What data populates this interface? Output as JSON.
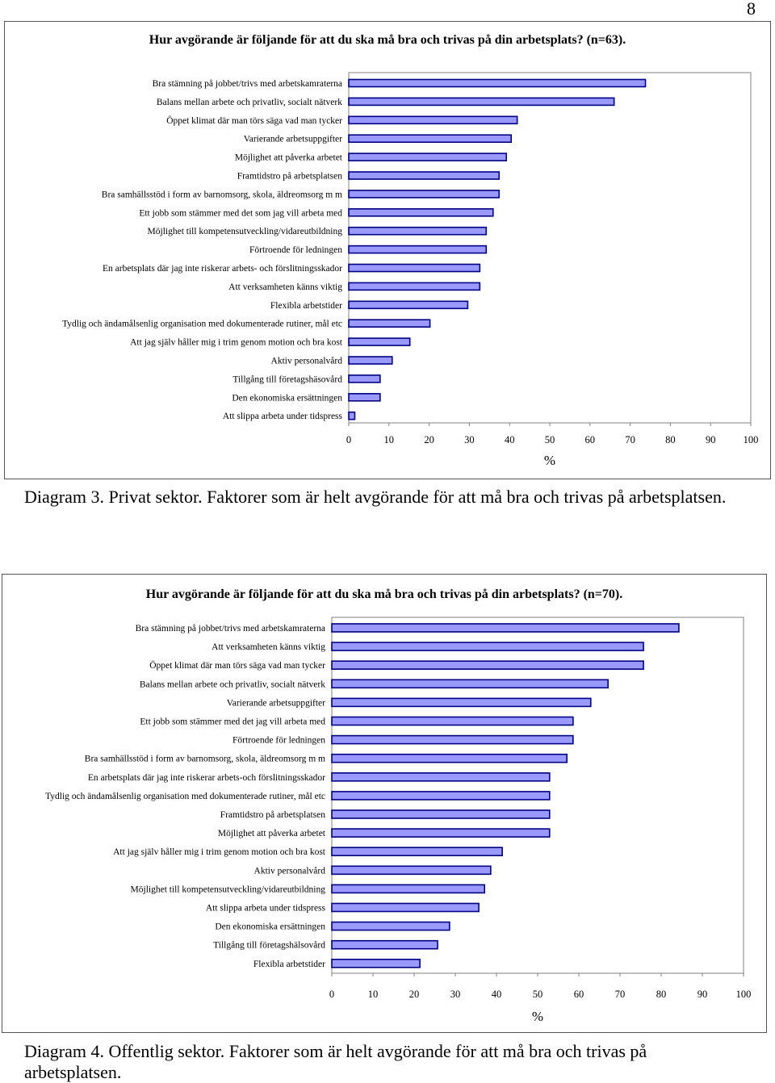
{
  "page_number": "8",
  "chart_data": [
    {
      "type": "bar",
      "orientation": "horizontal",
      "title": "Hur avgörande är följande för att du ska må bra och trivas på din arbetsplats? (n=63).",
      "categories": [
        "Bra stämning på jobbet/trivs med arbetskamraterna",
        "Balans mellan arbete och privatliv, socialt nätverk",
        "Öppet klimat där man törs säga vad man tycker",
        "Varierande arbetsuppgifter",
        "Möjlighet att påverka arbetet",
        "Framtidstro på arbetsplatsen",
        "Bra samhällsstöd i form av barnomsorg, skola, äldreomsorg m m",
        "Ett jobb som stämmer med det som jag vill arbeta med",
        "Möjlighet till kompetensutveckling/vidareutbildning",
        "Förtroende för ledningen",
        "En arbetsplats där jag inte riskerar arbets- och förslitningsskador",
        "Att verksamheten känns viktig",
        "Flexibla arbetstider",
        "Tydlig och ändamålsenlig organisation med dokumenterade rutiner, mål etc",
        "Att jag själv håller mig i trim genom motion och bra kost",
        "Aktiv personalvård",
        "Tillgång till företagshäsovård",
        "Den ekonomiska ersättningen",
        "Att slippa arbeta under tidspress"
      ],
      "values": [
        73.8,
        66,
        41.9,
        40.4,
        39.2,
        37.4,
        37.4,
        35.9,
        34.2,
        34.2,
        32.6,
        32.6,
        29.6,
        20.2,
        15.2,
        10.8,
        7.8,
        7.8,
        1.5
      ],
      "xlabel": "%",
      "xlim": [
        0,
        100
      ],
      "xticks": [
        "0",
        "10",
        "20",
        "30",
        "40",
        "50",
        "60",
        "70",
        "80",
        "90",
        "100"
      ],
      "bar_color": "#9999ff",
      "grid": false,
      "caption": "Diagram 3. Privat sektor. Faktorer som är helt avgörande för att må bra och trivas på arbetsplatsen."
    },
    {
      "type": "bar",
      "orientation": "horizontal",
      "title": "Hur avgörande är följande för att du ska må bra och trivas på din arbetsplats? (n=70).",
      "categories": [
        "Bra stämning på jobbet/trivs med arbetskamraterna",
        "Att verksamheten känns viktig",
        "Öppet klimat där man törs säga vad man tycker",
        "Balans mellan arbete och privatliv, socialt nätverk",
        "Varierande arbetsuppgifter",
        "Ett jobb som stämmer med det jag vill arbeta med",
        "Förtroende för ledningen",
        "Bra samhällsstöd i form av barnomsorg, skola, äldreomsorg m m",
        "En arbetsplats där jag inte riskerar arbets-och förslitningsskador",
        "Tydlig och ändamålsenlig organisation med dokumenterade rutiner, mål etc",
        "Framtidstro på arbetsplatsen",
        "Möjlighet att påverka arbetet",
        "Att jag själv håller mig i trim genom motion och bra kost",
        "Aktiv personalvård",
        "Möjlighet till kompetensutveckling/vidareutbildning",
        "Att slippa arbeta under tidspress",
        "Den ekonomiska ersättningen",
        "Tillgång till företagshälsovård",
        "Flexibla arbetstider"
      ],
      "values": [
        84.3,
        75.7,
        75.7,
        67.1,
        62.9,
        58.6,
        58.6,
        57.1,
        52.9,
        52.9,
        52.9,
        52.9,
        41.4,
        38.6,
        37.1,
        35.7,
        28.6,
        25.7,
        21.4
      ],
      "xlabel": "%",
      "xlim": [
        0,
        100
      ],
      "xticks": [
        "0",
        "10",
        "20",
        "30",
        "40",
        "50",
        "60",
        "70",
        "80",
        "90",
        "100"
      ],
      "bar_color": "#9999ff",
      "grid": false,
      "caption": "Diagram 4. Offentlig sektor. Faktorer som är helt avgörande för att må bra och trivas på arbetsplatsen."
    }
  ]
}
